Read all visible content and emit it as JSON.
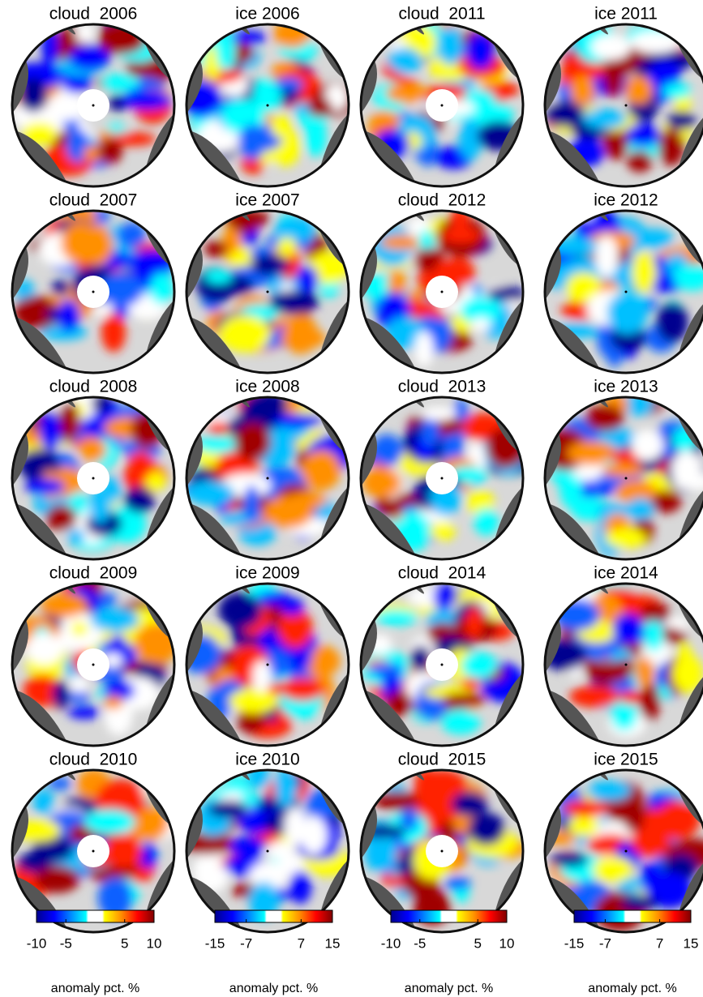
{
  "columns": [
    {
      "panels": [
        "cloud  2006",
        "cloud  2007",
        "cloud  2008",
        "cloud  2009",
        "cloud  2010"
      ],
      "colorbar": {
        "lim": [
          -10,
          10
        ],
        "ticks": [
          -10,
          -5,
          5,
          10
        ],
        "label": "anomaly pct. %"
      }
    },
    {
      "panels": [
        "ice 2006",
        "ice 2007",
        "ice 2008",
        "ice 2009",
        "ice 2010"
      ],
      "colorbar": {
        "lim": [
          -15,
          15
        ],
        "ticks": [
          -15,
          -7,
          7,
          15
        ],
        "label": "anomaly pct. %"
      }
    },
    {
      "panels": [
        "cloud  2011",
        "cloud  2012",
        "cloud  2013",
        "cloud  2014",
        "cloud  2015"
      ],
      "colorbar": {
        "lim": [
          -10,
          10
        ],
        "ticks": [
          -10,
          -5,
          5,
          10
        ],
        "label": "anomaly pct. %"
      }
    },
    {
      "panels": [
        "ice 2011",
        "ice 2012",
        "ice 2013",
        "ice 2014",
        "ice 2015"
      ],
      "colorbar": {
        "lim": [
          -15,
          15
        ],
        "ticks": [
          -15,
          -7,
          7,
          15
        ],
        "label": "anomaly pct. %"
      }
    }
  ]
}
